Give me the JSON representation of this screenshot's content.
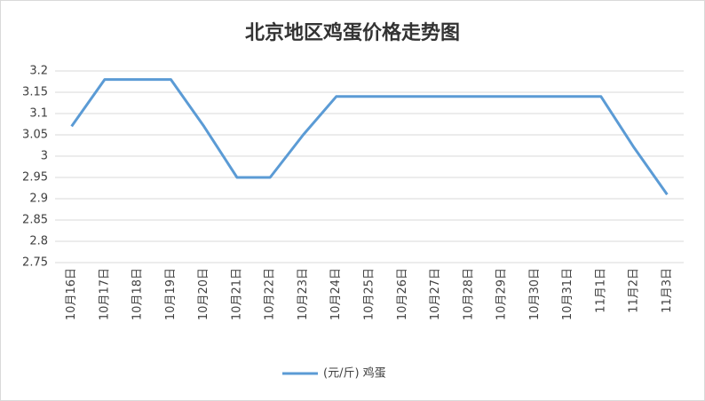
{
  "chart_data": {
    "type": "line",
    "title": "北京地区鸡蛋价格走势图",
    "categories": [
      "10月16日",
      "10月17日",
      "10月18日",
      "10月19日",
      "10月20日",
      "10月21日",
      "10月22日",
      "10月23日",
      "10月24日",
      "10月25日",
      "10月26日",
      "10月27日",
      "10月28日",
      "10月29日",
      "10月30日",
      "10月31日",
      "11月1日",
      "11月2日",
      "11月3日"
    ],
    "series": [
      {
        "name": "(元/斤) 鸡蛋",
        "color": "#5b9bd5",
        "values": [
          3.07,
          3.18,
          3.18,
          3.18,
          3.07,
          2.95,
          2.95,
          3.05,
          3.14,
          3.14,
          3.14,
          3.14,
          3.14,
          3.14,
          3.14,
          3.14,
          3.14,
          3.02,
          2.91
        ]
      }
    ],
    "ylim": [
      2.75,
      3.2
    ],
    "yticks": [
      2.75,
      2.8,
      2.85,
      2.9,
      2.95,
      3,
      3.05,
      3.1,
      3.15,
      3.2
    ],
    "grid": true,
    "legend": "bottom"
  }
}
